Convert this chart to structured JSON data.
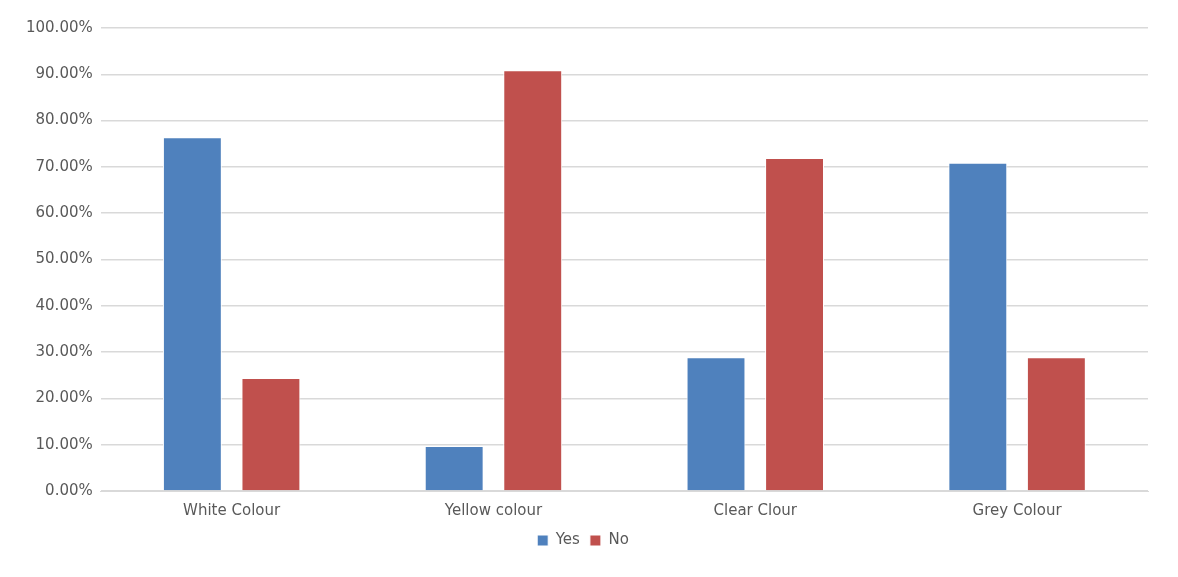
{
  "chart_data": {
    "type": "bar",
    "categories": [
      "White Colour",
      "Yellow colour",
      "Clear Clour",
      "Grey Colour"
    ],
    "series": [
      {
        "name": "Yes",
        "color": "#4f81bd",
        "values": [
          76.4,
          9.7,
          28.9,
          70.9
        ]
      },
      {
        "name": "No",
        "color": "#c0504d",
        "values": [
          24.4,
          90.9,
          71.9,
          28.9
        ]
      }
    ],
    "ylim": [
      0,
      100
    ],
    "yticks": [
      {
        "value": 0,
        "label": "0.00%"
      },
      {
        "value": 10,
        "label": "10.00%"
      },
      {
        "value": 20,
        "label": "20.00%"
      },
      {
        "value": 30,
        "label": "30.00%"
      },
      {
        "value": 40,
        "label": "40.00%"
      },
      {
        "value": 50,
        "label": "50.00%"
      },
      {
        "value": 60,
        "label": "60.00%"
      },
      {
        "value": 70,
        "label": "70.00%"
      },
      {
        "value": 80,
        "label": "80.00%"
      },
      {
        "value": 90,
        "label": "90.00%"
      },
      {
        "value": 100,
        "label": "100.00%"
      }
    ],
    "grid": "y",
    "legend": "bottom"
  }
}
